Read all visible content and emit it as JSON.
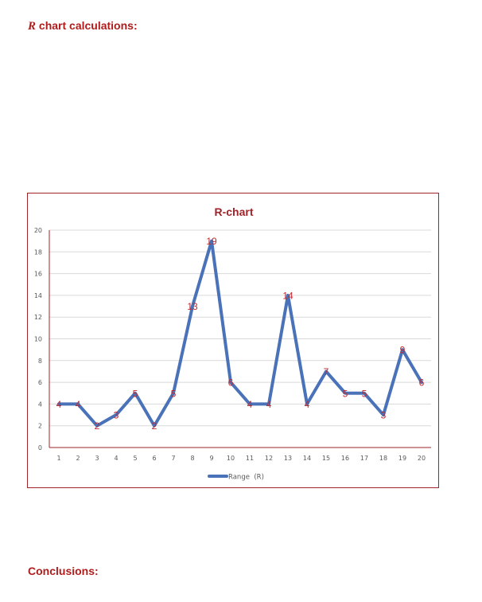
{
  "headings": {
    "calc_symbol": "R",
    "calc_text": " chart calculations:",
    "conclusions": "Conclusions:"
  },
  "chart_data": {
    "type": "line",
    "title": "R-chart",
    "xlabel": "",
    "ylabel": "",
    "categories": [
      "1",
      "2",
      "3",
      "4",
      "5",
      "6",
      "7",
      "8",
      "9",
      "10",
      "11",
      "12",
      "13",
      "14",
      "15",
      "16",
      "17",
      "18",
      "19",
      "20"
    ],
    "series": [
      {
        "name": "Range  (R)",
        "values": [
          4,
          4,
          2,
          3,
          5,
          2,
          5,
          13,
          19,
          6,
          4,
          4,
          14,
          4,
          7,
          5,
          5,
          3,
          9,
          6
        ],
        "color": "#4a72b8"
      }
    ],
    "ylim": [
      0,
      20
    ],
    "yticks": [
      0,
      2,
      4,
      6,
      8,
      10,
      12,
      14,
      16,
      18,
      20
    ],
    "grid": true,
    "legend": "bottom",
    "data_labels": true,
    "colors": {
      "title": "#a0232a",
      "axis": "#a0232a",
      "label": "#c0282e",
      "grid": "#d9d9d9",
      "tick": "#595959"
    }
  }
}
